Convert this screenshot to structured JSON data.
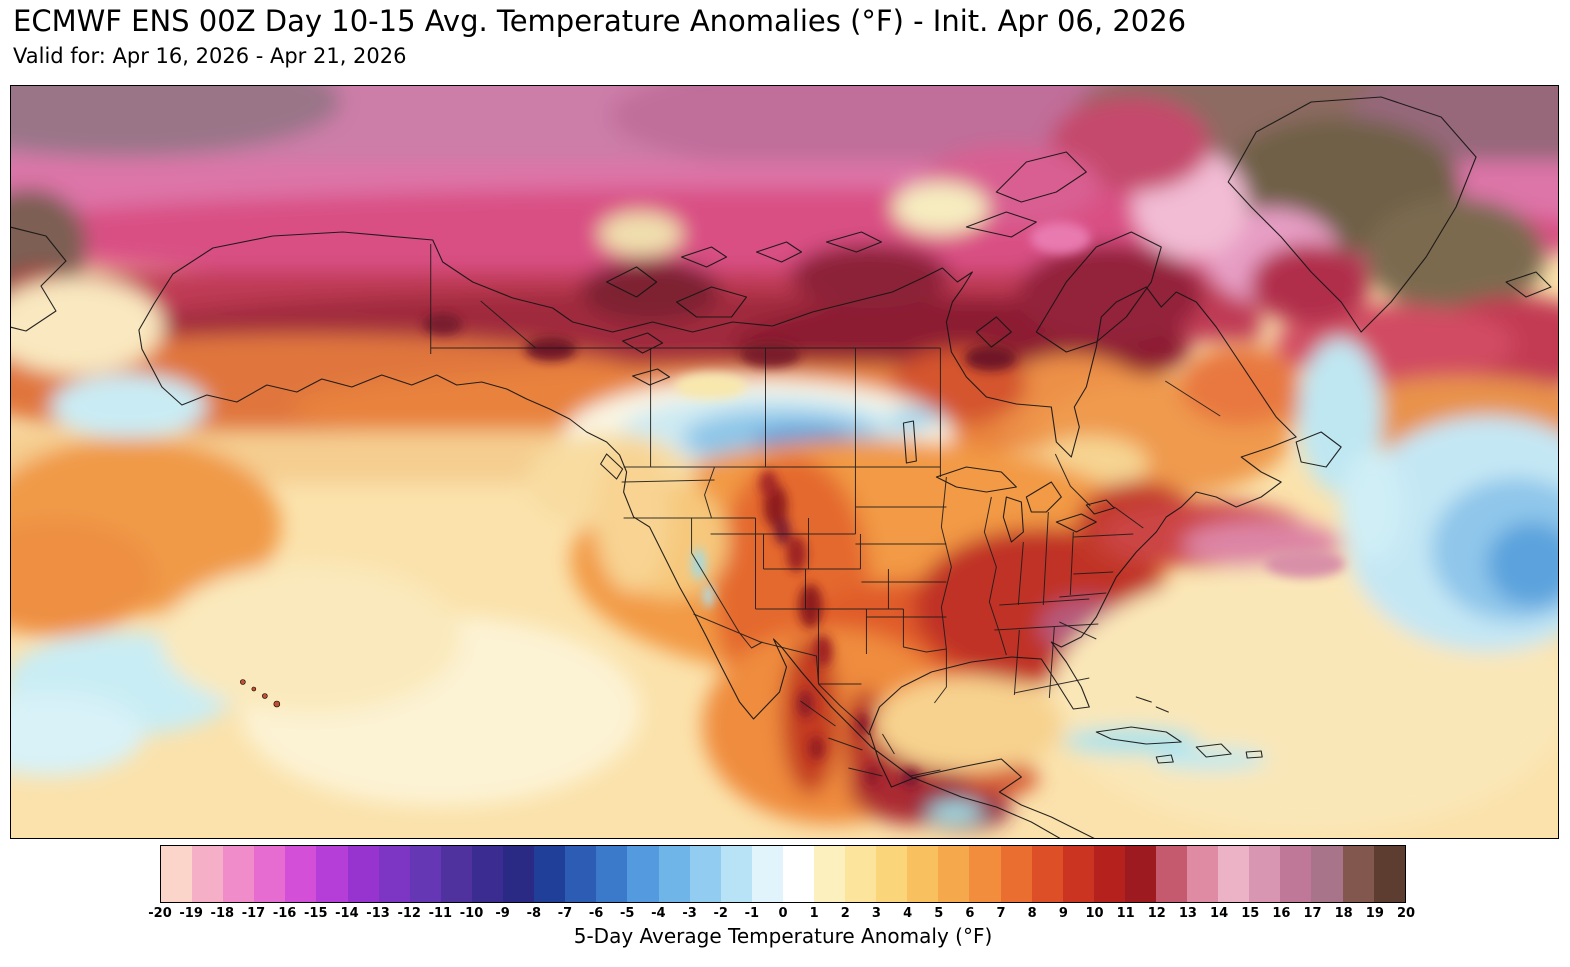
{
  "header": {
    "title": "ECMWF ENS 00Z Day 10-15 Avg. Temperature Anomalies (°F) - Init. Apr 06, 2026",
    "subtitle": "Valid for: Apr 16, 2026 - Apr 21, 2026"
  },
  "colorbar": {
    "label": "5-Day Average Temperature Anomaly (°F)",
    "tick_labels": [
      "-20",
      "-19",
      "-18",
      "-17",
      "-16",
      "-15",
      "-14",
      "-13",
      "-12",
      "-11",
      "-10",
      "-9",
      "-8",
      "-7",
      "-6",
      "-5",
      "-4",
      "-3",
      "-2",
      "-1",
      "0",
      "1",
      "2",
      "3",
      "4",
      "5",
      "6",
      "7",
      "8",
      "9",
      "10",
      "11",
      "12",
      "13",
      "14",
      "15",
      "16",
      "17",
      "18",
      "19",
      "20"
    ],
    "segment_colors": [
      "#fbd5c9",
      "#f5afc7",
      "#f08cca",
      "#e76cd1",
      "#d44fd8",
      "#b53ed8",
      "#9733cf",
      "#7d35c4",
      "#6637b4",
      "#50329f",
      "#3a2c90",
      "#2a2a85",
      "#1f3f99",
      "#2c5cb3",
      "#3b79cb",
      "#539ade",
      "#70b5e8",
      "#92ccf0",
      "#b8e2f6",
      "#e2f4fb",
      "#ffffff",
      "#fdf0bf",
      "#fce49c",
      "#fad579",
      "#f8c05e",
      "#f6a94c",
      "#f18d3d",
      "#e96e30",
      "#dd4f27",
      "#cb3420",
      "#b5211c",
      "#9c1a20",
      "#c55a6e",
      "#de8ba3",
      "#ecb3c6",
      "#d996b2",
      "#c07898",
      "#a87489",
      "#82584e",
      "#5c3d30"
    ]
  },
  "chart_data": {
    "type": "heatmap",
    "title": "ECMWF ENS 00Z Day 10-15 Avg. Temperature Anomalies (°F) - Init. Apr 06, 2026",
    "colorbar_label": "5-Day Average Temperature Anomaly (°F)",
    "units": "°F",
    "value_range": [
      -20,
      20
    ],
    "regions": [
      {
        "area": "Arctic Canada and high latitudes",
        "anomaly_F": "+8 to +20"
      },
      {
        "area": "Greenland interior",
        "anomaly_F": "+17 to +20"
      },
      {
        "area": "Canadian Prairies (AB/SK) pocket",
        "anomaly_F": "-2 to -8"
      },
      {
        "area": "Southeast / Mid-Atlantic US core",
        "anomaly_F": "+10 to +15"
      },
      {
        "area": "Western and Central US",
        "anomaly_F": "+2 to +9"
      },
      {
        "area": "Mexico interior highlands",
        "anomaly_F": "+6 to +12"
      },
      {
        "area": "Central North Atlantic",
        "anomaly_F": "-2 to -6"
      },
      {
        "area": "Subtropical Pacific and Atlantic oceans",
        "anomaly_F": "+1 to +4"
      }
    ]
  }
}
